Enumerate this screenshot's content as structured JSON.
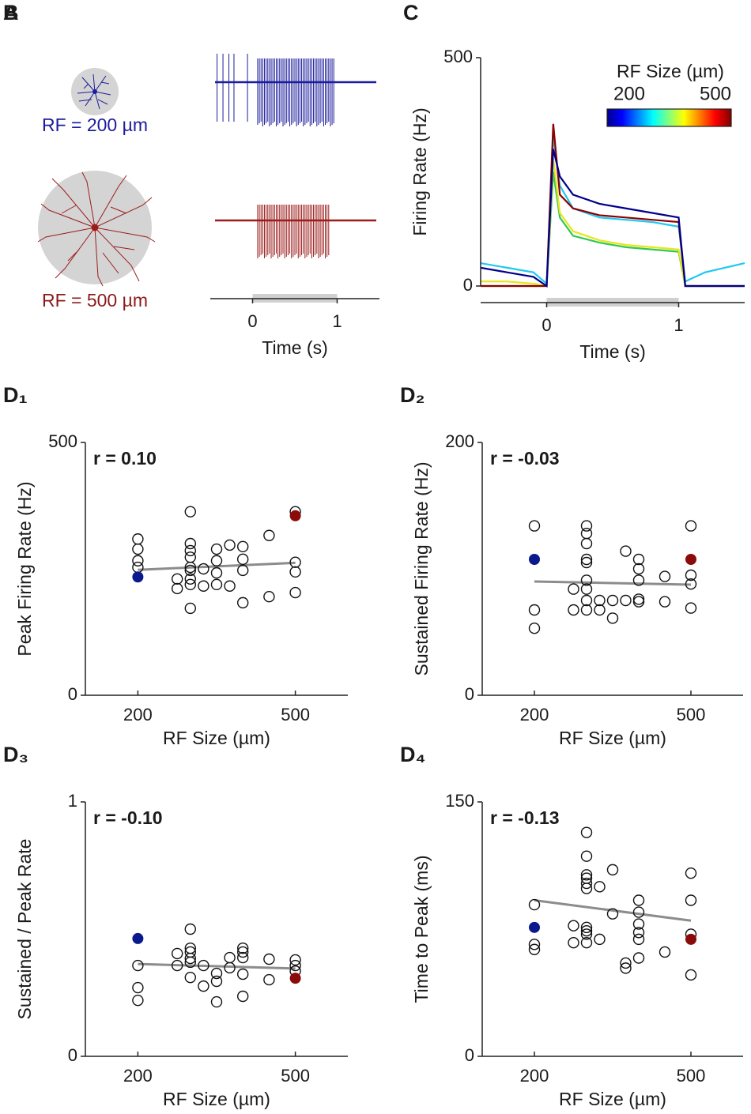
{
  "panel_a": {
    "panel": "A",
    "labels": [
      "RF = 200 µm",
      "RF = 500 µm"
    ]
  },
  "chart_data": [
    {
      "type": "spike-trace",
      "panel": "B",
      "xlabel": "Time (s)",
      "xlim": [
        -0.5,
        1.5
      ],
      "xticks": [
        0,
        1
      ],
      "stimulus": [
        0,
        1
      ],
      "series": [
        {
          "color": "#1c1c9c",
          "spikes": [
            -0.42,
            -0.35,
            -0.28,
            -0.22,
            -0.06,
            0.06,
            0.08,
            0.1,
            0.12,
            0.14,
            0.16,
            0.18,
            0.2,
            0.22,
            0.24,
            0.26,
            0.28,
            0.3,
            0.32,
            0.34,
            0.36,
            0.38,
            0.4,
            0.42,
            0.44,
            0.46,
            0.48,
            0.5,
            0.52,
            0.54,
            0.56,
            0.58,
            0.6,
            0.62,
            0.64,
            0.66,
            0.68,
            0.7,
            0.72,
            0.74,
            0.76,
            0.78,
            0.8,
            0.82,
            0.84,
            0.86,
            0.88,
            0.9,
            0.92,
            0.94,
            0.96
          ]
        },
        {
          "color": "#9c1c1c",
          "spikes": [
            0.06,
            0.08,
            0.1,
            0.12,
            0.14,
            0.16,
            0.18,
            0.2,
            0.22,
            0.24,
            0.26,
            0.28,
            0.3,
            0.32,
            0.34,
            0.36,
            0.38,
            0.4,
            0.42,
            0.44,
            0.46,
            0.48,
            0.5,
            0.52,
            0.54,
            0.56,
            0.58,
            0.6,
            0.62,
            0.64,
            0.66,
            0.68,
            0.7,
            0.72,
            0.74,
            0.76,
            0.78,
            0.8,
            0.82,
            0.84,
            0.86,
            0.88,
            0.9
          ]
        }
      ]
    },
    {
      "type": "line",
      "panel": "C",
      "xlabel": "Time (s)",
      "ylabel": "Firing Rate (Hz)",
      "xlim": [
        -0.5,
        1.5
      ],
      "xticks": [
        0,
        1
      ],
      "ylim": [
        0,
        500
      ],
      "yticks": [
        0,
        500
      ],
      "stimulus": [
        0,
        1
      ],
      "colorbar": {
        "title": "RF Size (µm)",
        "lim": [
          200,
          500
        ],
        "ticks": [
          200,
          500
        ]
      },
      "x": [
        -0.5,
        -0.3,
        -0.1,
        0,
        0.05,
        0.1,
        0.2,
        0.4,
        0.6,
        0.8,
        1.0,
        1.05,
        1.2,
        1.5
      ],
      "series": [
        {
          "color": "#1ec8f0",
          "values": [
            50,
            40,
            30,
            5,
            330,
            220,
            170,
            150,
            145,
            140,
            130,
            10,
            30,
            50
          ]
        },
        {
          "color": "#32c850",
          "values": [
            0,
            0,
            0,
            0,
            250,
            150,
            110,
            95,
            85,
            80,
            75,
            0,
            0,
            0
          ]
        },
        {
          "color": "#e6e61e",
          "values": [
            10,
            10,
            5,
            0,
            280,
            160,
            120,
            100,
            90,
            85,
            80,
            0,
            0,
            0
          ]
        },
        {
          "color": "#8b0000",
          "values": [
            0,
            0,
            0,
            0,
            355,
            200,
            170,
            155,
            150,
            145,
            140,
            0,
            0,
            0
          ]
        },
        {
          "color": "#00008b",
          "values": [
            40,
            30,
            20,
            0,
            300,
            240,
            200,
            180,
            170,
            160,
            150,
            0,
            0,
            0
          ]
        }
      ]
    },
    {
      "type": "scatter",
      "panel": "D₁",
      "annotation": "r = 0.10",
      "xlabel": "RF Size (µm)",
      "ylabel": "Peak Firing Rate (Hz)",
      "xlim": [
        100,
        600
      ],
      "xticks": [
        200,
        500
      ],
      "ylim": [
        0,
        500
      ],
      "yticks": [
        0,
        500
      ],
      "x": [
        200,
        200,
        200,
        200,
        275,
        275,
        300,
        300,
        300,
        300,
        300,
        300,
        300,
        300,
        300,
        325,
        325,
        350,
        350,
        350,
        350,
        375,
        375,
        400,
        400,
        400,
        400,
        450,
        450,
        500,
        500,
        500,
        500
      ],
      "values": [
        309,
        289,
        266,
        253,
        230,
        211,
        363,
        300,
        286,
        273,
        253,
        247,
        230,
        219,
        172,
        250,
        216,
        289,
        266,
        242,
        219,
        297,
        216,
        294,
        269,
        247,
        183,
        316,
        195,
        363,
        263,
        244,
        203
      ],
      "highlight": [
        {
          "x": 200,
          "value": 234,
          "color": "#0a1a8c"
        },
        {
          "x": 500,
          "value": 355,
          "color": "#8b0a0a"
        }
      ],
      "fit": {
        "x": [
          200,
          500
        ],
        "values": [
          248,
          262
        ],
        "color": "#8c8c8c"
      }
    },
    {
      "type": "scatter",
      "panel": "D₂",
      "annotation": "r = -0.03",
      "xlabel": "RF Size (µm)",
      "ylabel": "Sustained Firing Rate (Hz)",
      "xlim": [
        100,
        600
      ],
      "xticks": [
        200,
        500
      ],
      "ylim": [
        0,
        200
      ],
      "yticks": [
        0,
        200
      ],
      "x": [
        200,
        200,
        200,
        275,
        275,
        300,
        300,
        300,
        300,
        300,
        300,
        300,
        300,
        300,
        325,
        325,
        350,
        350,
        375,
        375,
        400,
        400,
        400,
        400,
        400,
        450,
        450,
        500,
        500,
        500,
        500
      ],
      "values": [
        134,
        67.5,
        53,
        84,
        67.5,
        134,
        128,
        120,
        107.5,
        105,
        91,
        84,
        75,
        67.5,
        75,
        67.5,
        75,
        61,
        114,
        75,
        107.5,
        100,
        91,
        76,
        74,
        94,
        74,
        134,
        95,
        88,
        69
      ],
      "highlight": [
        {
          "x": 200,
          "value": 107.5,
          "color": "#0a1a8c"
        },
        {
          "x": 500,
          "value": 107.5,
          "color": "#8b0a0a"
        }
      ],
      "fit": {
        "x": [
          200,
          500
        ],
        "values": [
          90,
          87.5
        ],
        "color": "#8c8c8c"
      }
    },
    {
      "type": "scatter",
      "panel": "D₃",
      "annotation": "r = -0.10",
      "xlabel": "RF Size (µm)",
      "ylabel": "Sustained / Peak Rate",
      "xlim": [
        100,
        600
      ],
      "xticks": [
        200,
        500
      ],
      "ylim": [
        0,
        1
      ],
      "yticks": [
        0,
        1
      ],
      "x": [
        200,
        200,
        200,
        275,
        275,
        300,
        300,
        300,
        300,
        300,
        300,
        325,
        325,
        350,
        350,
        350,
        375,
        375,
        400,
        400,
        400,
        400,
        400,
        450,
        450,
        500,
        500,
        500
      ],
      "values": [
        0.357,
        0.27,
        0.22,
        0.404,
        0.357,
        0.5,
        0.425,
        0.41,
        0.385,
        0.37,
        0.31,
        0.357,
        0.276,
        0.326,
        0.295,
        0.214,
        0.388,
        0.348,
        0.425,
        0.41,
        0.388,
        0.323,
        0.236,
        0.382,
        0.301,
        0.379,
        0.357,
        0.335
      ],
      "highlight": [
        {
          "x": 200,
          "value": 0.463,
          "color": "#0a1a8c"
        },
        {
          "x": 500,
          "value": 0.307,
          "color": "#8b0a0a"
        }
      ],
      "fit": {
        "x": [
          200,
          500
        ],
        "values": [
          0.363,
          0.345
        ],
        "color": "#8c8c8c"
      }
    },
    {
      "type": "scatter",
      "panel": "D₄",
      "annotation": "r = -0.13",
      "xlabel": "RF Size (µm)",
      "ylabel": "Time to Peak (ms)",
      "xlim": [
        100,
        600
      ],
      "xticks": [
        200,
        500
      ],
      "ylim": [
        0,
        150
      ],
      "yticks": [
        0,
        150
      ],
      "x": [
        200,
        200,
        200,
        275,
        275,
        300,
        300,
        300,
        300,
        300,
        300,
        300,
        300,
        300,
        300,
        325,
        325,
        350,
        350,
        375,
        375,
        400,
        400,
        400,
        400,
        400,
        400,
        450,
        500,
        500,
        500,
        500
      ],
      "values": [
        89.4,
        66,
        63,
        77,
        67,
        132,
        118,
        107,
        105,
        102,
        99,
        76,
        74,
        72,
        67,
        100,
        69,
        110,
        84,
        55,
        52,
        92,
        85,
        78,
        73,
        69,
        58,
        61.5,
        108,
        92,
        72,
        48
      ],
      "highlight": [
        {
          "x": 200,
          "value": 76,
          "color": "#0a1a8c"
        },
        {
          "x": 500,
          "value": 69,
          "color": "#8b0a0a"
        }
      ],
      "fit": {
        "x": [
          200,
          500
        ],
        "values": [
          92,
          80
        ],
        "color": "#8c8c8c"
      }
    }
  ]
}
